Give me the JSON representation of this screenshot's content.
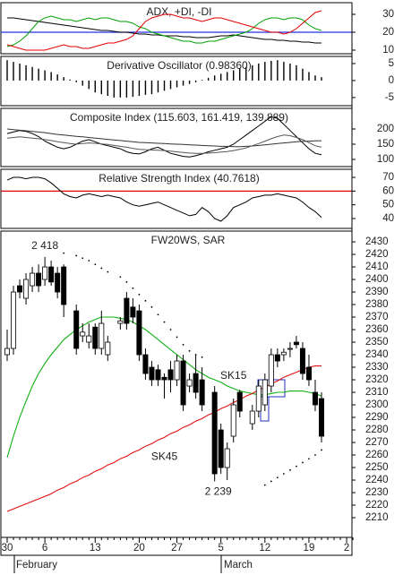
{
  "chart_data": [
    {
      "type": "line",
      "title": "ADX, +DI, -DI",
      "ylim": [
        8,
        36.5
      ],
      "yticks": [
        30,
        20,
        10
      ],
      "hlines": [
        {
          "value": 20,
          "color": "#2030e0"
        }
      ],
      "series": [
        {
          "color": "#000000",
          "values": [
            28,
            28,
            27.5,
            27,
            26.5,
            26,
            25.5,
            25,
            24.5,
            24,
            23.5,
            23,
            22.5,
            22,
            21.5,
            21,
            21,
            20.5,
            20,
            20,
            19.5,
            19,
            19,
            18.5,
            18.5,
            18,
            18,
            18,
            17.5,
            17.5,
            17,
            17,
            17,
            17.5,
            18,
            18,
            18.5,
            18,
            17.5,
            17,
            16.5,
            16,
            16,
            15.5,
            15.5,
            15,
            15,
            14.5,
            14.5,
            14,
            14
          ]
        },
        {
          "color": "#00a000",
          "values": [
            12,
            13,
            15,
            18,
            22,
            26,
            28,
            29,
            28,
            27,
            27,
            26,
            27,
            28,
            27,
            28,
            28,
            27,
            26,
            26,
            25,
            23,
            22,
            20,
            19,
            18,
            17,
            16,
            15,
            15,
            14,
            14,
            15,
            15,
            16,
            17,
            18,
            19,
            20,
            22,
            25,
            27,
            28,
            28,
            27,
            28,
            28,
            27,
            24,
            22,
            21
          ]
        },
        {
          "color": "#e00000",
          "values": [
            13,
            12,
            11,
            10,
            10,
            10,
            10,
            11,
            12,
            13,
            12,
            12,
            11,
            11,
            12,
            13,
            14,
            14,
            15,
            16,
            18,
            22,
            26,
            28,
            29,
            30,
            30,
            29,
            28,
            28,
            27,
            26,
            27,
            28,
            28,
            27,
            26,
            25,
            24,
            23,
            22,
            21,
            20,
            20,
            19,
            20,
            22,
            25,
            28,
            31,
            32
          ]
        }
      ]
    },
    {
      "type": "bar",
      "title": "Derivative Oscillator (0.98360)",
      "ylim": [
        -7.4,
        7.1
      ],
      "yticks": [
        5,
        0,
        -5
      ],
      "color": "#000000",
      "values": [
        6,
        5.5,
        5,
        4.5,
        4,
        3.5,
        3,
        2.5,
        1.8,
        1,
        0.3,
        -0.5,
        -1.5,
        -2.5,
        -3.5,
        -4,
        -4.5,
        -5,
        -5,
        -5,
        -4.8,
        -4.5,
        -4.2,
        -4,
        -3.5,
        -3,
        -2.5,
        -2,
        -1.5,
        -1,
        -0.5,
        0.2,
        0.8,
        1.5,
        2,
        2.5,
        3,
        3.5,
        4,
        4.5,
        5,
        5.5,
        5.8,
        6,
        5.5,
        5,
        4.5,
        3.5,
        2.5,
        1.5,
        0.9836
      ]
    },
    {
      "type": "line",
      "title": "Composite Index (115.603, 161.419, 139.889)",
      "ylim": [
        76.5,
        267.6
      ],
      "yticks": [
        200,
        150,
        100
      ],
      "series": [
        {
          "color": "#000000",
          "values": [
            185,
            190,
            195,
            192,
            185,
            175,
            160,
            150,
            140,
            135,
            140,
            150,
            160,
            165,
            158,
            150,
            145,
            140,
            135,
            125,
            120,
            118,
            125,
            135,
            140,
            130,
            120,
            115,
            110,
            108,
            112,
            118,
            125,
            130,
            135,
            140,
            150,
            165,
            180,
            195,
            210,
            225,
            240,
            235,
            215,
            195,
            175,
            155,
            135,
            120,
            115.603
          ]
        },
        {
          "color": "#333333",
          "values": [
            200,
            198,
            196,
            194,
            192,
            190,
            188,
            185,
            182,
            180,
            178,
            176,
            174,
            172,
            170,
            168,
            166,
            164,
            162,
            160,
            158,
            156,
            155,
            154,
            153,
            152,
            151,
            150,
            149,
            148,
            147,
            146,
            145,
            144,
            143,
            143,
            142,
            142,
            143,
            144,
            146,
            148,
            150,
            152,
            154,
            156,
            158,
            159,
            160,
            161,
            161.419
          ]
        },
        {
          "color": "#555555",
          "values": [
            170,
            172,
            174,
            172,
            170,
            168,
            165,
            162,
            158,
            155,
            152,
            150,
            152,
            154,
            153,
            151,
            149,
            146,
            143,
            140,
            136,
            133,
            132,
            131,
            130,
            129,
            127,
            125,
            123,
            121,
            120,
            120,
            121,
            122,
            124,
            126,
            129,
            133,
            138,
            145,
            152,
            160,
            168,
            175,
            180,
            178,
            172,
            165,
            155,
            145,
            139.889
          ]
        }
      ]
    },
    {
      "type": "line",
      "title": "Relative Strength Index (40.7618)",
      "ylim": [
        32.8,
        75.9
      ],
      "yticks": [
        70,
        60,
        50,
        40
      ],
      "hlines": [
        {
          "value": 60,
          "color": "#e00000"
        }
      ],
      "series": [
        {
          "color": "#000000",
          "values": [
            68,
            70,
            70,
            69,
            70,
            70,
            69,
            66,
            62,
            58,
            56,
            55,
            57,
            58,
            57,
            56,
            57,
            56,
            55,
            52,
            50,
            49,
            50,
            51,
            52,
            50,
            48,
            46,
            44,
            42,
            43,
            48,
            45,
            40,
            38,
            42,
            48,
            50,
            52,
            55,
            56,
            57,
            57,
            58,
            57,
            56,
            55,
            52,
            48,
            45,
            40.7618
          ]
        }
      ]
    },
    {
      "type": "candlestick",
      "title": "FW20WS, SAR",
      "ylim": [
        2194.3,
        2438.6
      ],
      "yticks": [
        2430,
        2420,
        2410,
        2400,
        2390,
        2380,
        2370,
        2360,
        2350,
        2340,
        2330,
        2320,
        2310,
        2300,
        2290,
        2280,
        2270,
        2260,
        2250,
        2240,
        2230,
        2220,
        2210
      ],
      "categories": [
        "30",
        null,
        null,
        null,
        null,
        null,
        "6",
        null,
        null,
        null,
        null,
        null,
        null,
        null,
        "13",
        null,
        null,
        null,
        null,
        null,
        null,
        "20",
        null,
        null,
        null,
        null,
        null,
        "27",
        null,
        null,
        null,
        null,
        null,
        null,
        "5",
        null,
        null,
        null,
        null,
        null,
        null,
        "12",
        null,
        null,
        null,
        null,
        null,
        null,
        "19",
        null,
        null,
        null,
        null,
        null,
        "2",
        null
      ],
      "months": [
        "February",
        "March"
      ],
      "open": [
        2340,
        2345,
        2395,
        2385,
        2395,
        2405,
        2400,
        2410,
        2405,
        2410,
        null,
        2375,
        2355,
        2350,
        2362,
        2345,
        2340,
        null,
        2365,
        2385,
        2378,
        2375,
        2340,
        2330,
        2328,
        2322,
        2328,
        2320,
        2335,
        2315,
        2325,
        2320,
        null,
        2310,
        2280,
        2250,
        2275,
        2310,
        null,
        2285,
        2295,
        2300,
        2315,
        2340,
        2340,
        2345,
        2350,
        2345,
        2330,
        2310,
        2305,
        null,
        null,
        null,
        null,
        null
      ],
      "high": [
        2360,
        2395,
        2400,
        2405,
        2410,
        2412,
        2418,
        2415,
        2410,
        2412,
        null,
        2380,
        2365,
        2365,
        2365,
        2375,
        2355,
        null,
        2370,
        2390,
        2385,
        2380,
        2345,
        2335,
        2332,
        2325,
        2335,
        2340,
        2340,
        2325,
        2340,
        2330,
        null,
        2315,
        2285,
        2270,
        2305,
        2312,
        null,
        2300,
        2320,
        2325,
        2345,
        2345,
        2345,
        2350,
        2355,
        2350,
        2340,
        2320,
        2310,
        null,
        null,
        null,
        null,
        null
      ],
      "low": [
        2335,
        2340,
        2385,
        2380,
        2390,
        2390,
        2395,
        2395,
        2385,
        2370,
        null,
        2340,
        2350,
        2345,
        2340,
        2340,
        2335,
        null,
        2360,
        2360,
        2365,
        2335,
        2320,
        2315,
        2315,
        2305,
        2310,
        2315,
        2295,
        2310,
        2305,
        2295,
        null,
        2239,
        2245,
        2240,
        2270,
        2290,
        null,
        2280,
        2290,
        2295,
        2310,
        2330,
        2335,
        2338,
        2345,
        2320,
        2315,
        2295,
        2270,
        null,
        null,
        null,
        null,
        null
      ],
      "close": [
        2345,
        2390,
        2390,
        2400,
        2405,
        2395,
        2410,
        2398,
        2390,
        2380,
        null,
        2345,
        2358,
        2355,
        2345,
        2365,
        2350,
        null,
        2367,
        2365,
        2370,
        2340,
        2325,
        2320,
        2320,
        2320,
        2320,
        2335,
        2300,
        2320,
        2310,
        2300,
        null,
        2245,
        2250,
        2265,
        2300,
        2295,
        null,
        2295,
        2315,
        2320,
        2340,
        2335,
        2342,
        2345,
        2348,
        2325,
        2320,
        2300,
        2275,
        null,
        null,
        null,
        null,
        null
      ],
      "lines": [
        {
          "name": "SK15",
          "color": "#10b010",
          "values": [
            2258,
            2275,
            2290,
            2303,
            2315,
            2325,
            2333,
            2340,
            2346,
            2352,
            2356,
            2360,
            2363,
            2366,
            2368,
            2370,
            2370,
            2370,
            2369,
            2368,
            2366,
            2363,
            2360,
            2356,
            2352,
            2348,
            2344,
            2340,
            2336,
            2332,
            2328,
            2325,
            2322,
            2320,
            2318,
            2315,
            2313,
            2311,
            2310,
            2309,
            2308,
            2308,
            2309,
            2310,
            2310,
            2311,
            2311,
            2311,
            2310,
            2309,
            2307,
            null,
            null,
            null,
            null,
            null
          ]
        },
        {
          "name": "SK45",
          "color": "#e01010",
          "values": [
            2215,
            2217,
            2219,
            2221,
            2223,
            2225,
            2227,
            2229,
            2232,
            2234,
            2237,
            2239,
            2242,
            2244,
            2247,
            2249,
            2252,
            2254,
            2257,
            2259,
            2262,
            2264,
            2267,
            2269,
            2272,
            2274,
            2277,
            2279,
            2282,
            2284,
            2287,
            2289,
            2292,
            2294,
            2297,
            2299,
            2302,
            2304,
            2307,
            2309,
            2312,
            2314,
            2317,
            2319,
            2322,
            2324,
            2326,
            2328,
            2330,
            2331,
            2331,
            null,
            null,
            null,
            null,
            null
          ]
        }
      ],
      "sar": [
        null,
        null,
        null,
        null,
        null,
        null,
        null,
        null,
        null,
        2421,
        null,
        2419,
        2417,
        2415,
        2412,
        2409,
        2406,
        null,
        2402,
        2398,
        2393,
        2388,
        2383,
        2378,
        2372,
        2366,
        2360,
        2354,
        2348,
        2343,
        2340,
        2338,
        null,
        null,
        null,
        null,
        null,
        null,
        null,
        null,
        null,
        2236,
        2239,
        2242,
        2245,
        2248,
        2251,
        2254,
        2257,
        2260,
        2264,
        null,
        null,
        null,
        null,
        null
      ],
      "annotations": [
        {
          "text": "2 418",
          "value": 2418,
          "color": "#2030c0"
        },
        {
          "text": "2 239",
          "value": 2239,
          "color": "#2030c0"
        }
      ]
    }
  ]
}
